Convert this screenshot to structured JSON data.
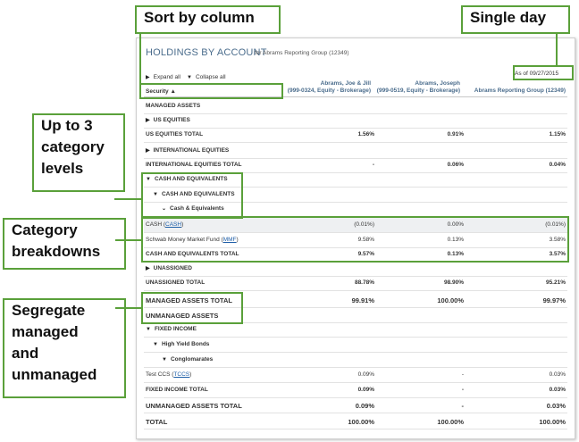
{
  "callouts": {
    "sort": "Sort by column",
    "single_day": "Single day",
    "category_levels": [
      "Up to 3",
      "category",
      "levels"
    ],
    "breakdowns": [
      "Category",
      "breakdowns"
    ],
    "segregate": [
      "Segregate",
      "managed",
      "and",
      "unmanaged"
    ]
  },
  "report": {
    "title": "HOLDINGS BY ACCOUNT",
    "subtitle": "for Abrams Reporting Group (12349)",
    "expand_all": "Expand all",
    "collapse_all": "Collapse all",
    "as_of": "As of 09/27/2015",
    "sort_column": "Security",
    "columns": [
      [
        "Abrams, Joe & Jill",
        "(999-0324, Equity - Brokerage)"
      ],
      [
        "Abrams, Joseph",
        "(999-0519, Equity - Brokerage)"
      ],
      [
        "Abrams Reporting Group (12349)"
      ]
    ],
    "rows": [
      {
        "label": "MANAGED ASSETS"
      },
      {
        "label": "US EQUITIES",
        "tri": "▶"
      },
      {
        "label": "US EQUITIES TOTAL",
        "v1": "1.56%",
        "v2": "0.91%",
        "v3": "1.15%"
      },
      {
        "label": "INTERNATIONAL EQUITIES",
        "tri": "▶"
      },
      {
        "label": "INTERNATIONAL EQUITIES TOTAL",
        "v1": "-",
        "v2": "0.06%",
        "v3": "0.04%"
      },
      {
        "label": "CASH AND EQUIVALENTS",
        "tri": "▼"
      },
      {
        "label": "CASH AND EQUIVALENTS",
        "tri": "▼"
      },
      {
        "label": "Cash & Equivalents",
        "tri": "⌄"
      },
      {
        "label": "CASH (",
        "link": "CASH",
        "suffix": ")",
        "v1": "(0.01%)",
        "v2": "0.00%",
        "v3": "(0.01%)"
      },
      {
        "label": "Schwab Money Market Fund (",
        "link": "MMF",
        "suffix": ")",
        "v1": "9.58%",
        "v2": "0.13%",
        "v3": "3.58%"
      },
      {
        "label": "CASH AND EQUIVALENTS TOTAL",
        "v1": "9.57%",
        "v2": "0.13%",
        "v3": "3.57%"
      },
      {
        "label": "UNASSIGNED",
        "tri": "▶"
      },
      {
        "label": "UNASSIGNED TOTAL",
        "v1": "88.78%",
        "v2": "98.90%",
        "v3": "95.21%"
      },
      {
        "label": "MANAGED ASSETS TOTAL",
        "v1": "99.91%",
        "v2": "100.00%",
        "v3": "99.97%"
      },
      {
        "label": "UNMANAGED ASSETS"
      },
      {
        "label": "FIXED INCOME",
        "tri": "▼"
      },
      {
        "label": "High Yield Bonds",
        "tri": "▼"
      },
      {
        "label": "Conglomarates",
        "tri": "▼"
      },
      {
        "label": "Test CCS (",
        "link": "TCCS",
        "suffix": ")",
        "v1": "0.09%",
        "v2": "-",
        "v3": "0.03%"
      },
      {
        "label": "FIXED INCOME TOTAL",
        "v1": "0.09%",
        "v2": "-",
        "v3": "0.03%"
      },
      {
        "label": "UNMANAGED ASSETS TOTAL",
        "v1": "0.09%",
        "v2": "-",
        "v3": "0.03%"
      },
      {
        "label": "TOTAL",
        "v1": "100.00%",
        "v2": "100.00%",
        "v3": "100.00%"
      }
    ]
  },
  "colors": {
    "accent_green": "#5aa03a",
    "header_blue": "#4a6c8c",
    "link_blue": "#1f5fa8"
  }
}
